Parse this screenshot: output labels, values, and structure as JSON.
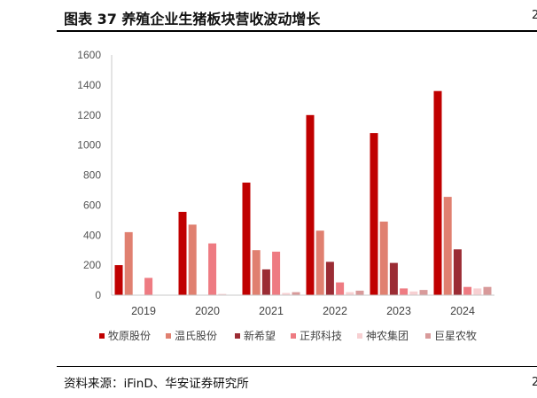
{
  "header": {
    "title": "图表 37 养殖企业生猪板块营收波动增长",
    "right_edge_char": "2"
  },
  "footer": {
    "source": "资料来源：iFinD、华安证券研究所",
    "right_edge_char": "2"
  },
  "chart_data": {
    "type": "bar",
    "title": "",
    "xlabel": "",
    "ylabel": "",
    "categories": [
      "2019",
      "2020",
      "2021",
      "2022",
      "2023",
      "2024"
    ],
    "ylim": [
      0,
      1600
    ],
    "yticks": [
      0,
      200,
      400,
      600,
      800,
      1000,
      1200,
      1400,
      1600
    ],
    "grid": false,
    "legend_position": "bottom",
    "series": [
      {
        "name": "牧原股份",
        "color": "#c00000",
        "values": [
          200,
          555,
          750,
          1200,
          1080,
          1360
        ]
      },
      {
        "name": "温氏股份",
        "color": "#e08070",
        "values": [
          420,
          470,
          300,
          430,
          490,
          655
        ]
      },
      {
        "name": "新希望",
        "color": "#9b2c34",
        "values": [
          0,
          0,
          172,
          222,
          215,
          305
        ]
      },
      {
        "name": "正邦科技",
        "color": "#ee7b82",
        "values": [
          115,
          345,
          290,
          85,
          45,
          55
        ]
      },
      {
        "name": "神农集团",
        "color": "#f7d0d2",
        "values": [
          0,
          8,
          15,
          20,
          25,
          45
        ]
      },
      {
        "name": "巨星农牧",
        "color": "#d89a9a",
        "values": [
          0,
          0,
          20,
          30,
          35,
          55
        ]
      }
    ]
  }
}
